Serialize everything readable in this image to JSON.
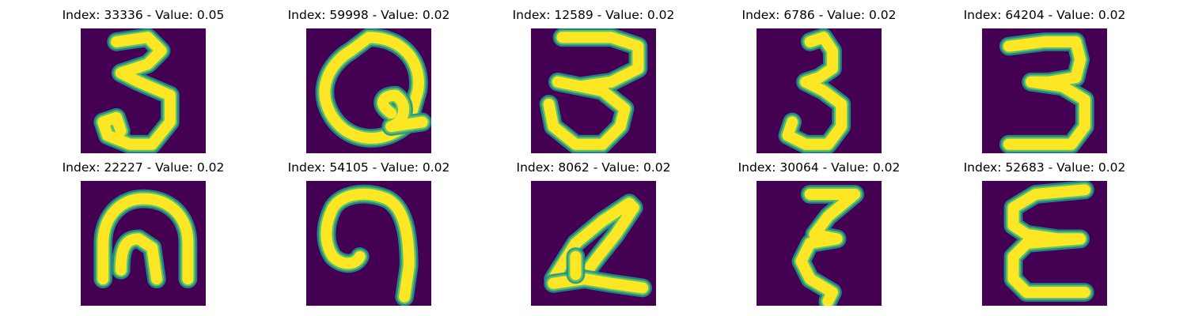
{
  "chart_data": {
    "type": "image-grid",
    "rows": 2,
    "cols": 5,
    "colormap": {
      "background": "#440154",
      "mid": "#21918c",
      "mid_light": "#5ec962",
      "high": "#fde725"
    },
    "panels": [
      {
        "index": "33336",
        "value": "0.05",
        "glyph": "three-a"
      },
      {
        "index": "59998",
        "value": "0.02",
        "glyph": "loop-q"
      },
      {
        "index": "12589",
        "value": "0.02",
        "glyph": "three-b"
      },
      {
        "index": "6786",
        "value": "0.02",
        "glyph": "three-c"
      },
      {
        "index": "64204",
        "value": "0.02",
        "glyph": "three-d"
      },
      {
        "index": "22227",
        "value": "0.02",
        "glyph": "blob-n"
      },
      {
        "index": "54105",
        "value": "0.02",
        "glyph": "hook"
      },
      {
        "index": "8062",
        "value": "0.02",
        "glyph": "slant-a"
      },
      {
        "index": "30064",
        "value": "0.02",
        "glyph": "zeta"
      },
      {
        "index": "52683",
        "value": "0.02",
        "glyph": "epsilon"
      }
    ],
    "labels": {
      "index_prefix": "Index: ",
      "separator": " - ",
      "value_prefix": "Value: "
    }
  }
}
